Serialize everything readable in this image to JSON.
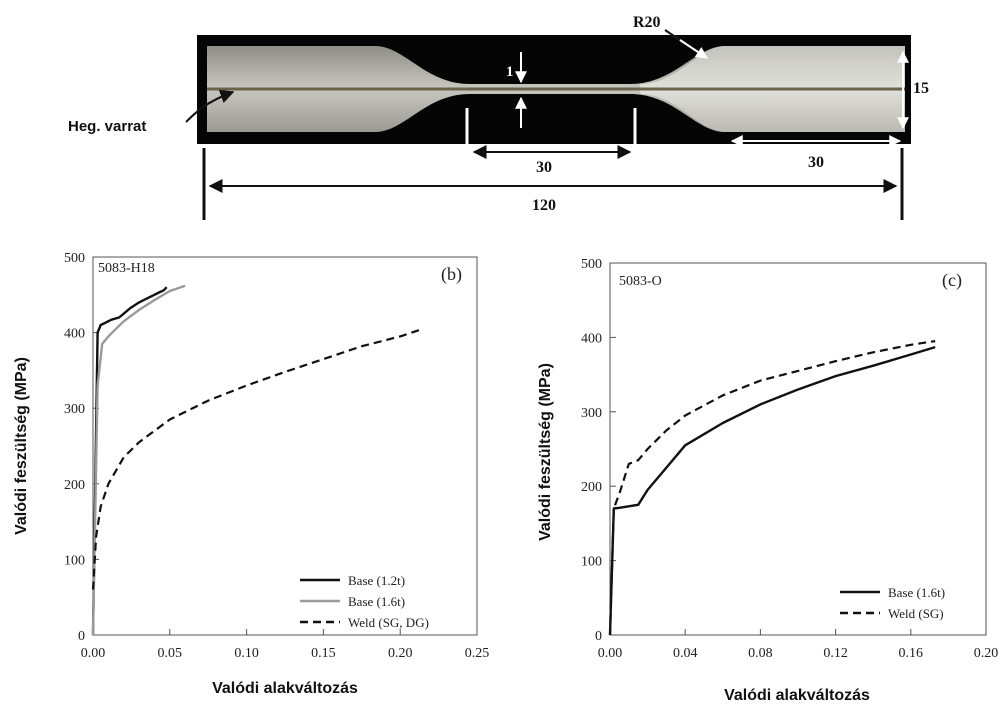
{
  "specimen": {
    "weld_label": "Heg. varrat",
    "radius_label": "R20",
    "thickness_label": "1",
    "width_label": "15",
    "gauge_label": "30",
    "grip_label": "30",
    "total_label": "120"
  },
  "chart_data": [
    {
      "type": "line",
      "panel_label": "(b)",
      "annotation": "5083-H18",
      "xlabel": "Valódi alakváltozás",
      "ylabel": "Valódi feszültség (MPa)",
      "xlim": [
        0,
        0.25
      ],
      "ylim": [
        0,
        500
      ],
      "xticks": [
        "0.00",
        "0.05",
        "0.10",
        "0.15",
        "0.20",
        "0.25"
      ],
      "yticks": [
        "0",
        "100",
        "200",
        "300",
        "400",
        "500"
      ],
      "grid": false,
      "legend_position": "bottom-right",
      "series": [
        {
          "name": "Base (1.2t)",
          "color": "#111111",
          "style": "solid",
          "x": [
            0,
            0.003,
            0.005,
            0.008,
            0.012,
            0.017,
            0.02,
            0.024,
            0.027,
            0.03,
            0.033,
            0.036,
            0.04,
            0.043,
            0.046,
            0.048
          ],
          "y": [
            0,
            400,
            410,
            413,
            417,
            420,
            425,
            432,
            436,
            440,
            443,
            446,
            450,
            453,
            456,
            460
          ]
        },
        {
          "name": "Base (1.6t)",
          "color": "#9a9a9a",
          "style": "solid",
          "x": [
            0,
            0.003,
            0.006,
            0.01,
            0.015,
            0.02,
            0.03,
            0.04,
            0.05,
            0.06
          ],
          "y": [
            0,
            330,
            385,
            395,
            405,
            415,
            430,
            443,
            455,
            462
          ]
        },
        {
          "name": "Weld (SG, DG)",
          "color": "#111111",
          "style": "dashed",
          "x": [
            0,
            0.002,
            0.005,
            0.01,
            0.02,
            0.03,
            0.05,
            0.075,
            0.1,
            0.125,
            0.15,
            0.175,
            0.2,
            0.215
          ],
          "y": [
            60,
            130,
            170,
            200,
            235,
            255,
            285,
            310,
            330,
            348,
            365,
            382,
            395,
            405
          ]
        }
      ]
    },
    {
      "type": "line",
      "panel_label": "(c)",
      "annotation": "5083-O",
      "xlabel": "Valódi alakváltozás",
      "ylabel": "Valódi feszültség (MPa)",
      "xlim": [
        0,
        0.2
      ],
      "ylim": [
        0,
        500
      ],
      "xticks": [
        "0.00",
        "0.04",
        "0.08",
        "0.12",
        "0.16",
        "0.20"
      ],
      "yticks": [
        "0",
        "100",
        "200",
        "300",
        "400",
        "500"
      ],
      "grid": false,
      "legend_position": "bottom-right",
      "series": [
        {
          "name": "Base (1.6t)",
          "color": "#111111",
          "style": "solid",
          "x": [
            0,
            0.002,
            0.005,
            0.01,
            0.015,
            0.02,
            0.03,
            0.04,
            0.06,
            0.08,
            0.1,
            0.12,
            0.14,
            0.16,
            0.173
          ],
          "y": [
            0,
            170,
            171,
            173,
            175,
            195,
            225,
            255,
            285,
            310,
            330,
            348,
            362,
            377,
            387
          ]
        },
        {
          "name": "Weld (SG)",
          "color": "#111111",
          "style": "dashed",
          "x": [
            0,
            0.002,
            0.005,
            0.01,
            0.015,
            0.02,
            0.03,
            0.04,
            0.06,
            0.08,
            0.1,
            0.12,
            0.14,
            0.16,
            0.173
          ],
          "y": [
            0,
            170,
            190,
            230,
            235,
            250,
            275,
            295,
            322,
            342,
            355,
            368,
            380,
            390,
            395
          ]
        }
      ]
    }
  ]
}
